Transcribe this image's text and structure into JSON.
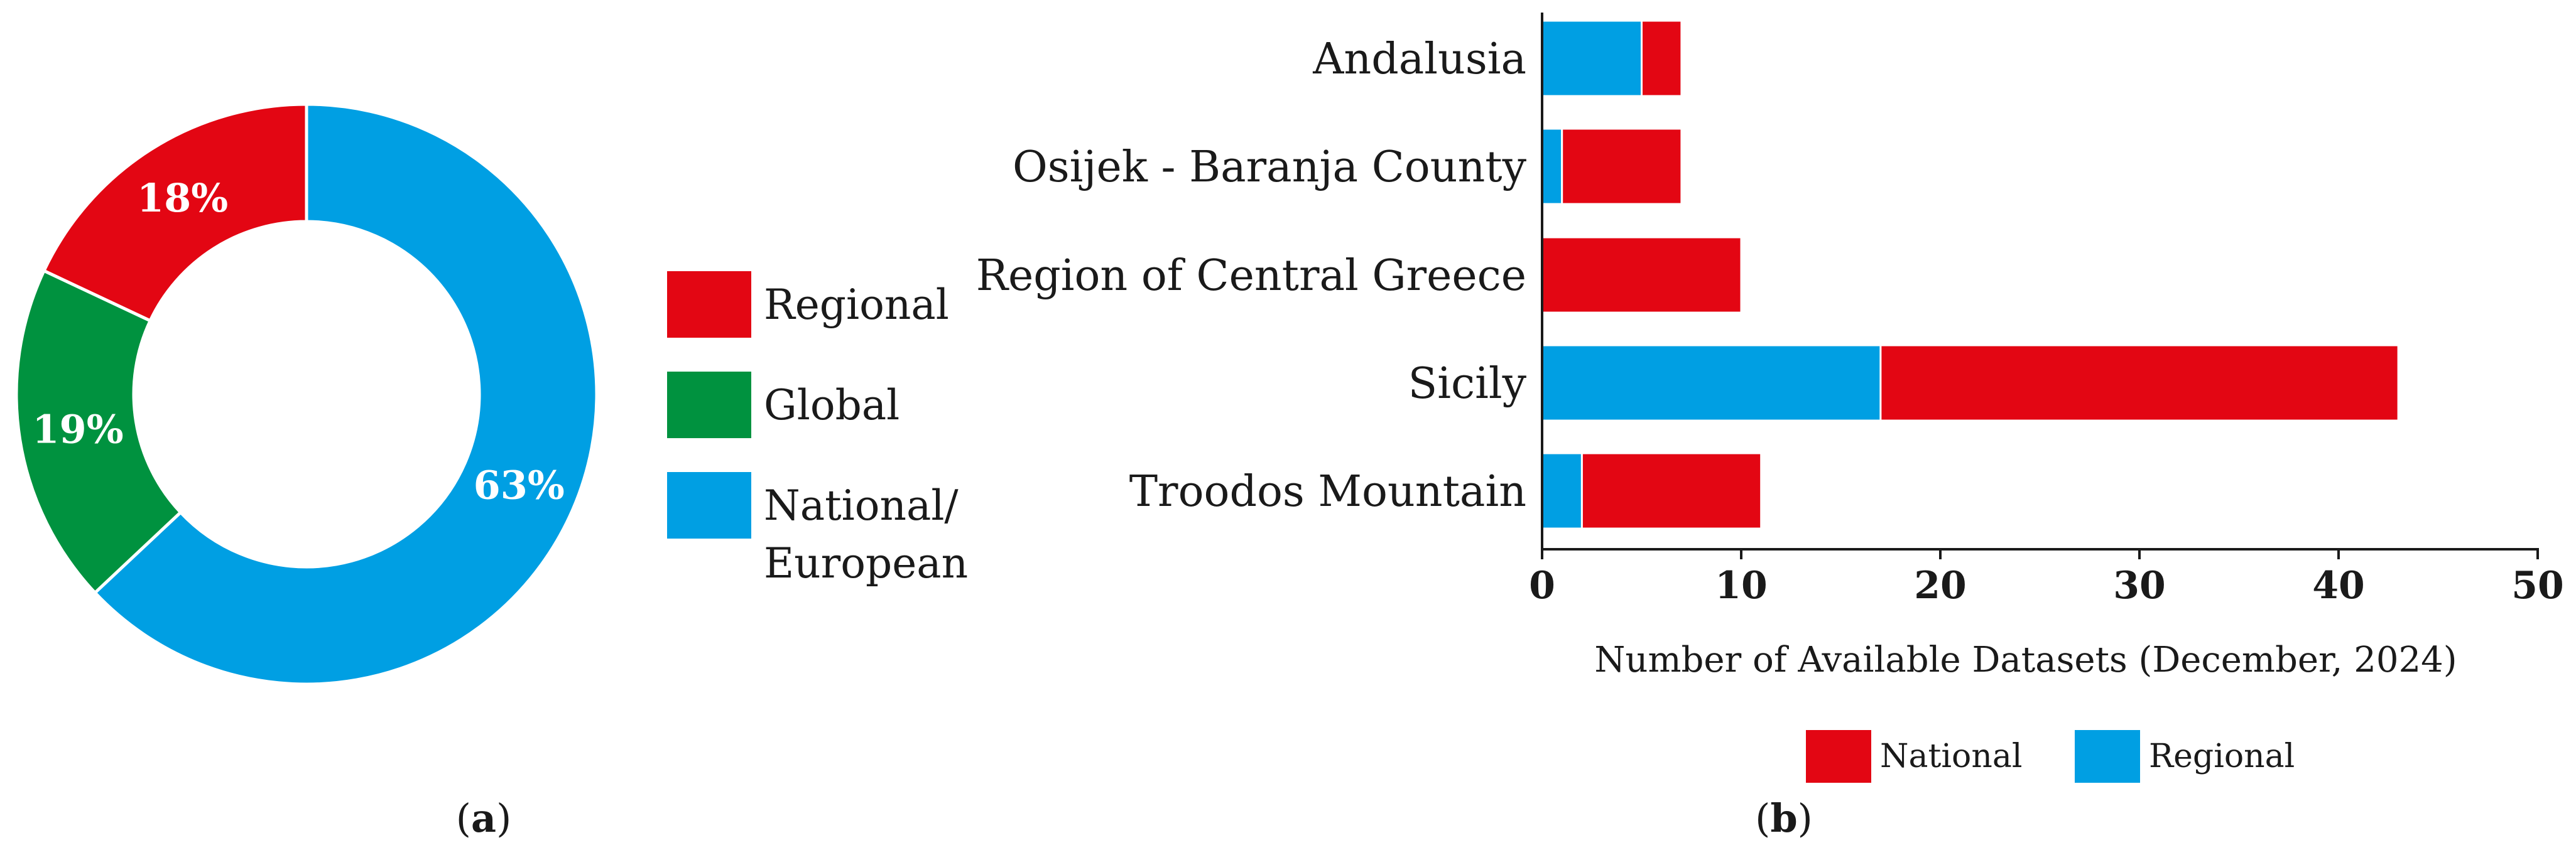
{
  "chart_data": [
    {
      "type": "pie",
      "panel_label": {
        "open": "(",
        "letter": "a",
        "close": ")"
      },
      "donut": true,
      "slices": [
        {
          "label": "National/ European",
          "value": 63,
          "display": "63%",
          "color": "#009fe3"
        },
        {
          "label": "Global",
          "value": 19,
          "display": "19%",
          "color": "#00923f"
        },
        {
          "label": "Regional",
          "value": 18,
          "display": "18%",
          "color": "#e30613"
        }
      ],
      "legend": [
        {
          "lines": [
            "Regional"
          ],
          "color": "#e30613"
        },
        {
          "lines": [
            "Global"
          ],
          "color": "#00923f"
        },
        {
          "lines": [
            "National/",
            "European"
          ],
          "color": "#009fe3"
        }
      ],
      "legend_position": "right"
    },
    {
      "type": "bar",
      "orientation": "horizontal",
      "stacked": true,
      "panel_label": {
        "open": "(",
        "letter": "b",
        "close": ")"
      },
      "categories": [
        "Andalusia",
        "Osijek - Baranja County",
        "Region of Central Greece",
        "Sicily",
        "Troodos Mountain"
      ],
      "series": [
        {
          "name": "Regional",
          "values": [
            5,
            1,
            0,
            17,
            2
          ],
          "color": "#009fe3"
        },
        {
          "name": "National",
          "values": [
            2,
            6,
            10,
            26,
            9
          ],
          "color": "#e30613"
        }
      ],
      "xlabel": "Number of Available Datasets (December, 2024)",
      "xlim": [
        0,
        50
      ],
      "xticks": [
        0,
        10,
        20,
        30,
        40,
        50
      ],
      "grid": false,
      "legend": [
        {
          "name": "National",
          "color": "#e30613"
        },
        {
          "name": "Regional",
          "color": "#009fe3"
        }
      ],
      "legend_position": "bottom"
    }
  ]
}
